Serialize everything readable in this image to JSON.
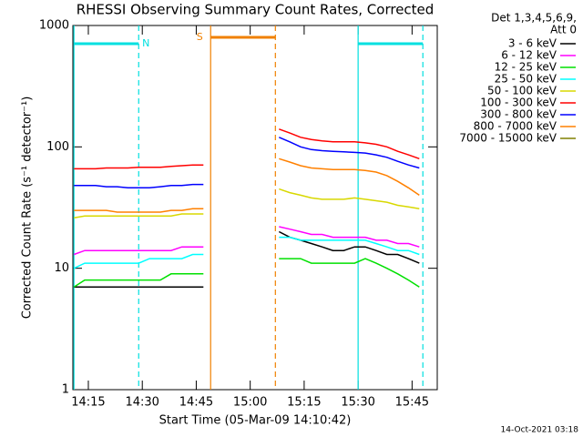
{
  "chart_data": {
    "type": "line",
    "title": "RHESSI Observing Summary Count Rates, Corrected",
    "x_label": "Start Time (05-Mar-09 14:10:42)",
    "y_label": "Corrected Count Rate (s⁻¹ detector⁻¹)",
    "log_y": true,
    "legend_note": [
      "Det 1,3,4,5,6,9,",
      "Att 0"
    ],
    "legend_position": "right",
    "footer": "14-Oct-2021 03:18",
    "xlim": [
      "14:10:42",
      "15:52"
    ],
    "xticks": [
      "14:15",
      "14:30",
      "14:45",
      "15:00",
      "15:15",
      "15:30",
      "15:45"
    ],
    "ylim": [
      1,
      1000
    ],
    "yticks": [
      1,
      10,
      100,
      1000
    ],
    "intervals": [
      {
        "label": "N",
        "start": "14:11",
        "end": "14:29",
        "color": "#00e0e0",
        "row": 1
      },
      {
        "label": "S",
        "start": "14:49",
        "end": "15:07",
        "color": "#f08000",
        "row": 0
      },
      {
        "start": "15:30",
        "end": "15:48",
        "color": "#00e0e0",
        "row": 1
      }
    ],
    "x": [
      "14:11",
      "14:14",
      "14:17",
      "14:20",
      "14:23",
      "14:26",
      "14:29",
      "14:32",
      "14:35",
      "14:38",
      "14:41",
      "14:44",
      "14:47",
      "14:57",
      "15:08",
      "15:11",
      "15:14",
      "15:17",
      "15:20",
      "15:23",
      "15:26",
      "15:29",
      "15:32",
      "15:35",
      "15:38",
      "15:41",
      "15:44",
      "15:47"
    ],
    "series": [
      {
        "name": "3 - 6 keV",
        "color": "#000000",
        "values": [
          7,
          7,
          7,
          7,
          7,
          7,
          7,
          7,
          7,
          7,
          7,
          7,
          7,
          null,
          20,
          18,
          17,
          16,
          15,
          14,
          14,
          15,
          15,
          14,
          13,
          13,
          12,
          11
        ]
      },
      {
        "name": "6 - 12 keV",
        "color": "#ff00ff",
        "values": [
          13,
          14,
          14,
          14,
          14,
          14,
          14,
          14,
          14,
          14,
          15,
          15,
          15,
          null,
          22,
          21,
          20,
          19,
          19,
          18,
          18,
          18,
          18,
          17,
          17,
          16,
          16,
          15
        ]
      },
      {
        "name": "12 - 25 keV",
        "color": "#00e000",
        "values": [
          7,
          8,
          8,
          8,
          8,
          8,
          8,
          8,
          8,
          9,
          9,
          9,
          9,
          null,
          12,
          12,
          12,
          11,
          11,
          11,
          11,
          11,
          12,
          11,
          10,
          9,
          8,
          7
        ]
      },
      {
        "name": "25 - 50 keV",
        "color": "#00ffff",
        "values": [
          10,
          11,
          11,
          11,
          11,
          11,
          11,
          12,
          12,
          12,
          12,
          13,
          13,
          null,
          18,
          18,
          17,
          17,
          17,
          17,
          17,
          17,
          17,
          16,
          15,
          14,
          14,
          13
        ]
      },
      {
        "name": "50 - 100 keV",
        "color": "#d8d800",
        "values": [
          26,
          27,
          27,
          27,
          27,
          27,
          27,
          27,
          27,
          27,
          28,
          28,
          28,
          null,
          45,
          42,
          40,
          38,
          37,
          37,
          37,
          38,
          37,
          36,
          35,
          33,
          32,
          31
        ]
      },
      {
        "name": "100 - 300 keV",
        "color": "#ff0000",
        "values": [
          66,
          66,
          66,
          67,
          67,
          67,
          68,
          68,
          68,
          69,
          70,
          71,
          71,
          null,
          140,
          130,
          120,
          115,
          112,
          110,
          110,
          110,
          108,
          105,
          100,
          92,
          86,
          80
        ]
      },
      {
        "name": "300 - 800 keV",
        "color": "#0000ff",
        "values": [
          48,
          48,
          48,
          47,
          47,
          46,
          46,
          46,
          47,
          48,
          48,
          49,
          49,
          null,
          120,
          110,
          100,
          95,
          93,
          92,
          91,
          90,
          89,
          86,
          82,
          76,
          71,
          67
        ]
      },
      {
        "name": "800 - 7000 keV",
        "color": "#ff8000",
        "values": [
          30,
          30,
          30,
          30,
          29,
          29,
          29,
          29,
          29,
          30,
          30,
          31,
          31,
          null,
          80,
          75,
          70,
          67,
          66,
          65,
          65,
          65,
          64,
          62,
          58,
          52,
          46,
          40
        ]
      },
      {
        "name": "7000 - 15000 keV",
        "color": "#808000",
        "values": [
          null,
          null,
          null,
          null,
          null,
          null,
          null,
          null,
          null,
          null,
          null,
          null,
          null,
          null,
          null,
          null,
          null,
          null,
          null,
          null,
          null,
          null,
          null,
          null,
          null,
          null,
          null,
          null
        ]
      }
    ]
  }
}
